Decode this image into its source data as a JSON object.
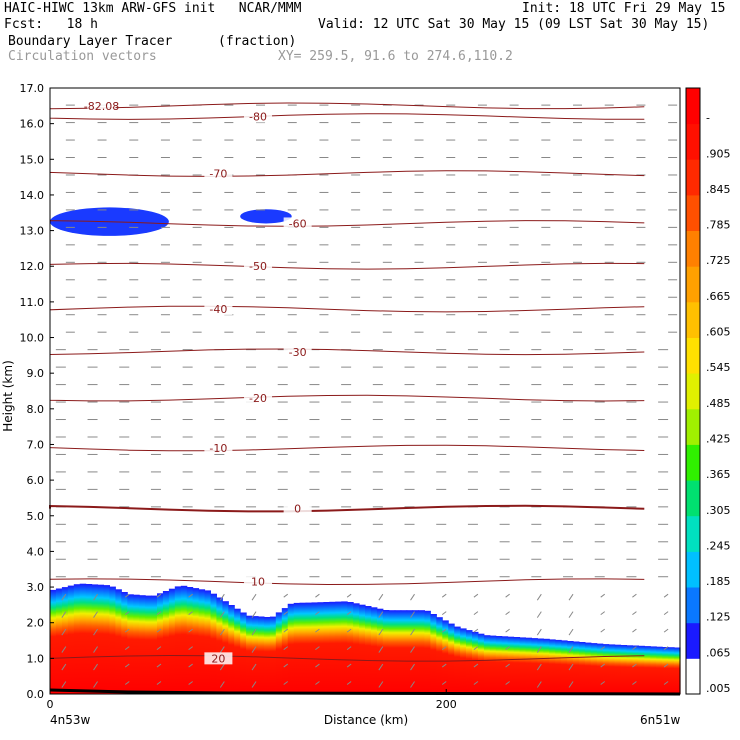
{
  "header": {
    "line1_left": "HAIC-HIWC 13km ARW-GFS init   NCAR/MMM",
    "line1_right": "Init: 18 UTC Fri 29 May 15",
    "line2_left": "Fcst:   18 h",
    "line2_right": "Valid: 12 UTC Sat 30 May 15 (09 LST Sat 30 May 15)",
    "line3_field": "Boundary Layer Tracer",
    "line3_units": "(fraction)",
    "line4_field": "Circulation vectors",
    "line4_xy": "XY= 259.5, 91.6 to 274.6,110.2"
  },
  "chart_data": {
    "type": "heatmap",
    "title": "Boundary Layer Tracer",
    "units": "fraction",
    "xlabel": "Distance (km)",
    "ylabel": "Height (km)",
    "x_ticks": [
      {
        "value": 0,
        "label": "0"
      },
      {
        "value": 200,
        "label": "200"
      }
    ],
    "x_endpoint_labels": {
      "left": "4n53w",
      "right": "6n51w"
    },
    "xlim": [
      0,
      318
    ],
    "ylim": [
      0,
      17
    ],
    "y_ticks": [
      "0.0",
      "1.0",
      "2.0",
      "3.0",
      "4.0",
      "5.0",
      "6.0",
      "7.0",
      "8.0",
      "9.0",
      "10.0",
      "11.0",
      "12.0",
      "13.0",
      "14.0",
      "15.0",
      "16.0",
      "17.0"
    ],
    "colorbar": {
      "labels": [
        ".005",
        ".065",
        ".125",
        ".185",
        ".245",
        ".305",
        ".365",
        ".425",
        ".485",
        ".545",
        ".605",
        ".665",
        ".725",
        ".785",
        ".845",
        ".905",
        "-"
      ],
      "colors": [
        "#ffffff",
        "#1a1aff",
        "#0a78ff",
        "#00c0ff",
        "#00e0c0",
        "#00e070",
        "#30f000",
        "#a0f000",
        "#e0f000",
        "#ffe000",
        "#ffc000",
        "#ffa000",
        "#ff8000",
        "#ff5000",
        "#ff2a00",
        "#ff1000",
        "#ff0000"
      ]
    },
    "tracer_top_km": [
      {
        "x": 0,
        "h": 2.9
      },
      {
        "x": 15,
        "h": 3.1
      },
      {
        "x": 30,
        "h": 3.05
      },
      {
        "x": 40,
        "h": 2.8
      },
      {
        "x": 52,
        "h": 2.75
      },
      {
        "x": 66,
        "h": 3.05
      },
      {
        "x": 80,
        "h": 2.9
      },
      {
        "x": 90,
        "h": 2.55
      },
      {
        "x": 100,
        "h": 2.2
      },
      {
        "x": 112,
        "h": 2.15
      },
      {
        "x": 122,
        "h": 2.55
      },
      {
        "x": 150,
        "h": 2.6
      },
      {
        "x": 170,
        "h": 2.35
      },
      {
        "x": 190,
        "h": 2.35
      },
      {
        "x": 205,
        "h": 1.9
      },
      {
        "x": 220,
        "h": 1.65
      },
      {
        "x": 250,
        "h": 1.55
      },
      {
        "x": 280,
        "h": 1.4
      },
      {
        "x": 318,
        "h": 1.3
      }
    ],
    "upper_patches": [
      {
        "x0": 0,
        "x1": 60,
        "h0": 12.85,
        "h1": 13.65
      },
      {
        "x0": 96,
        "x1": 122,
        "h0": 13.2,
        "h1": 13.6
      }
    ],
    "temperature_contours": [
      {
        "label": "20",
        "h": 1.0
      },
      {
        "label": "10",
        "h": 3.15
      },
      {
        "label": "0",
        "h": 5.2
      },
      {
        "label": "-10",
        "h": 6.9
      },
      {
        "label": "-20",
        "h": 8.3
      },
      {
        "label": "-30",
        "h": 9.6
      },
      {
        "label": "-40",
        "h": 10.8
      },
      {
        "label": "-50",
        "h": 12.0
      },
      {
        "label": "-60",
        "h": 13.2
      },
      {
        "label": "-70",
        "h": 14.6
      },
      {
        "label": "-80",
        "h": 16.2
      },
      {
        "label": "-82.08",
        "h": 16.5
      }
    ],
    "grid_on": false,
    "legend": "colorbar-right"
  }
}
